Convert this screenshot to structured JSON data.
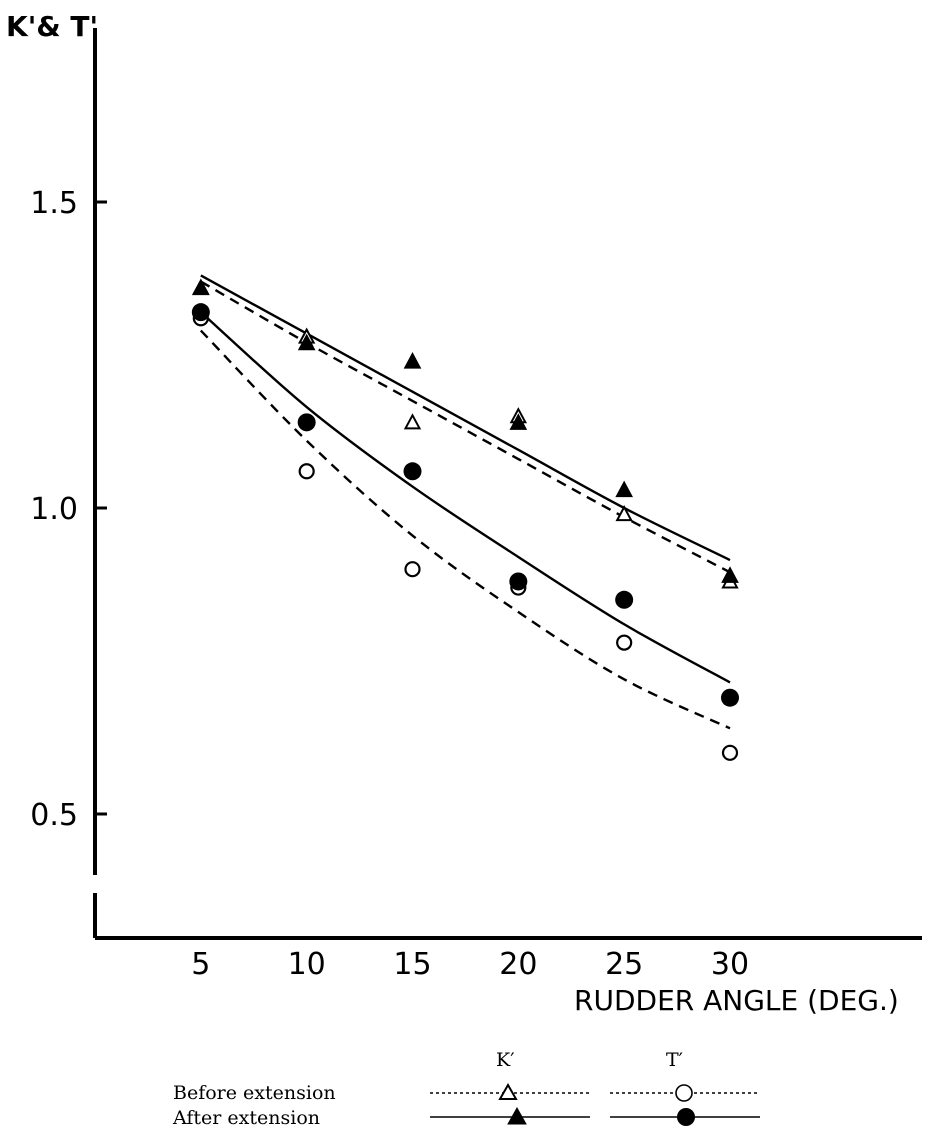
{
  "chart_data": {
    "type": "scatter",
    "ylabel": "K'& T'",
    "xlabel": "RUDDER ANGLE (DEG.)",
    "x_ticks": [
      "5",
      "10",
      "15",
      "20",
      "25",
      "30"
    ],
    "y_ticks": [
      "0.5",
      "1.0",
      "1.5"
    ],
    "xlim": [
      0,
      34
    ],
    "ylim": [
      0.32,
      1.78
    ],
    "legend": {
      "row_labels": [
        "Before extension",
        "After extension"
      ],
      "column_labels": [
        "K′",
        "T′"
      ]
    },
    "series": [
      {
        "key": "K_before",
        "marker": "open-triangle",
        "line": "dashed",
        "x": [
          5,
          10,
          15,
          20,
          25,
          30
        ],
        "points": [
          1.36,
          1.28,
          1.14,
          1.15,
          0.99,
          0.88
        ],
        "fit": [
          1.37,
          1.27,
          1.175,
          1.08,
          0.985,
          0.895
        ]
      },
      {
        "key": "K_after",
        "marker": "filled-triangle",
        "line": "solid",
        "x": [
          5,
          10,
          15,
          20,
          25,
          30
        ],
        "points": [
          1.36,
          1.27,
          1.24,
          1.14,
          1.03,
          0.89
        ],
        "fit": [
          1.38,
          1.285,
          1.19,
          1.095,
          1.0,
          0.915
        ]
      },
      {
        "key": "T_before",
        "marker": "open-circle",
        "line": "dashed",
        "x": [
          5,
          10,
          15,
          20,
          25,
          30
        ],
        "points": [
          1.31,
          1.06,
          0.9,
          0.87,
          0.78,
          0.6
        ],
        "fit": [
          1.29,
          1.11,
          0.955,
          0.83,
          0.72,
          0.64
        ]
      },
      {
        "key": "T_after",
        "marker": "filled-circle",
        "line": "solid",
        "x": [
          5,
          10,
          15,
          20,
          25,
          30
        ],
        "points": [
          1.32,
          1.14,
          1.06,
          0.88,
          0.85,
          0.69
        ],
        "fit": [
          1.32,
          1.165,
          1.035,
          0.92,
          0.81,
          0.715
        ]
      }
    ]
  }
}
